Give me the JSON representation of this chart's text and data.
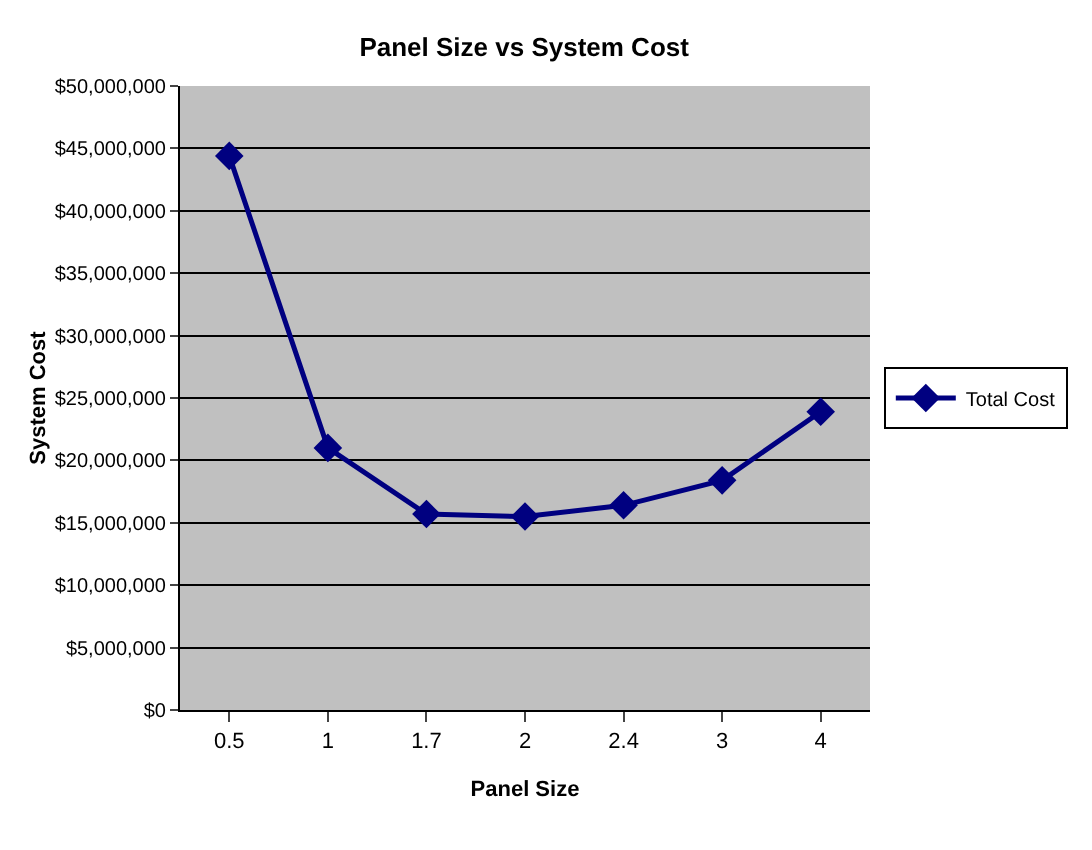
{
  "chart_data": {
    "type": "line",
    "title": "Panel Size vs System Cost",
    "xlabel": "Panel Size",
    "ylabel": "System Cost",
    "categories": [
      "0.5",
      "1",
      "1.7",
      "2",
      "2.4",
      "3",
      "4"
    ],
    "series": [
      {
        "name": "Total Cost",
        "color": "#000080",
        "values": [
          44400000,
          21000000,
          15700000,
          15500000,
          16400000,
          18400000,
          23900000
        ]
      }
    ],
    "ylim": [
      0,
      50000000
    ],
    "yticks": [
      {
        "value": 0,
        "label": "$0"
      },
      {
        "value": 5000000,
        "label": "$5,000,000"
      },
      {
        "value": 10000000,
        "label": "$10,000,000"
      },
      {
        "value": 15000000,
        "label": "$15,000,000"
      },
      {
        "value": 20000000,
        "label": "$20,000,000"
      },
      {
        "value": 25000000,
        "label": "$25,000,000"
      },
      {
        "value": 30000000,
        "label": "$30,000,000"
      },
      {
        "value": 35000000,
        "label": "$35,000,000"
      },
      {
        "value": 40000000,
        "label": "$40,000,000"
      },
      {
        "value": 45000000,
        "label": "$45,000,000"
      },
      {
        "value": 50000000,
        "label": "$50,000,000"
      }
    ],
    "grid": "y",
    "legend": "right",
    "marker": "diamond",
    "line_style": "solid"
  }
}
